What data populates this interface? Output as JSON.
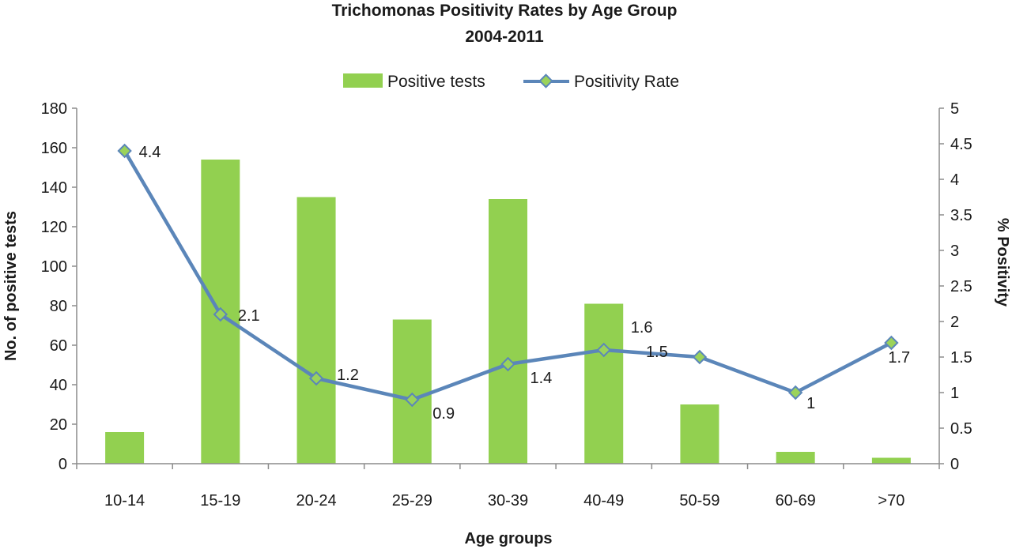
{
  "chart_data": {
    "type": "bar",
    "title": "Trichomonas Positivity Rates by Age Group",
    "subtitle": "2004-2011",
    "xlabel": "Age groups",
    "ylabel": "No. of positive tests",
    "y2label": "% Positivity",
    "categories": [
      "10-14",
      "15-19",
      "20-24",
      "25-29",
      "30-39",
      "40-49",
      "50-59",
      "60-69",
      ">70"
    ],
    "ylim": [
      0,
      180
    ],
    "yticks": [
      "0",
      "20",
      "40",
      "60",
      "80",
      "100",
      "120",
      "140",
      "160",
      "180"
    ],
    "y2lim": [
      0,
      5
    ],
    "y2ticks": [
      "0",
      "0.5",
      "1",
      "1.5",
      "2",
      "2.5",
      "3",
      "3.5",
      "4",
      "4.5",
      "5"
    ],
    "legend_position": "top",
    "grid": false,
    "series": [
      {
        "name": "Positive tests",
        "kind": "bar",
        "axis": "left",
        "color": "#92d050",
        "values": [
          16,
          154,
          135,
          73,
          134,
          81,
          30,
          6,
          3
        ]
      },
      {
        "name": "Positivity Rate",
        "kind": "line",
        "axis": "right",
        "color": "#5b86b9",
        "marker_color": "#9bd35a",
        "values": [
          4.4,
          2.1,
          1.2,
          0.9,
          1.4,
          1.6,
          1.5,
          1,
          1.7
        ],
        "labels": [
          "4.4",
          "2.1",
          "1.2",
          "0.9",
          "1.4",
          "1.6",
          "1.5",
          "1",
          "1.7"
        ]
      }
    ]
  }
}
